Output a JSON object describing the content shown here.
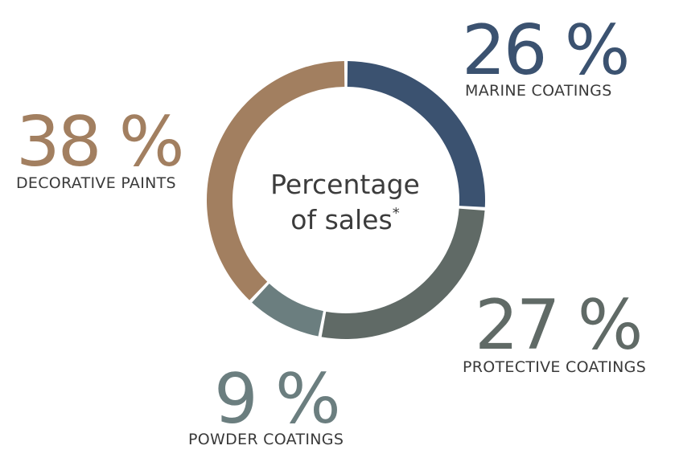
{
  "center": {
    "line1": "Percentage",
    "line2": "of sales",
    "footnote_mark": "*"
  },
  "colors": {
    "marine": "#3b5270",
    "protective": "#606a66",
    "powder": "#6b7e7f",
    "decorative": "#a27f60"
  },
  "chart_data": {
    "type": "pie",
    "donut": true,
    "start_angle_deg": 0,
    "direction": "clockwise",
    "title": "Percentage of sales*",
    "slices": [
      {
        "name": "MARINE COATINGS",
        "value": 26,
        "value_label": "26 %",
        "color": "#3b5270"
      },
      {
        "name": "PROTECTIVE COATINGS",
        "value": 27,
        "value_label": "27 %",
        "color": "#606a66"
      },
      {
        "name": "POWDER COATINGS",
        "value": 9,
        "value_label": "9 %",
        "color": "#6b7e7f"
      },
      {
        "name": "DECORATIVE PAINTS",
        "value": 38,
        "value_label": "38 %",
        "color": "#a27f60"
      }
    ]
  }
}
